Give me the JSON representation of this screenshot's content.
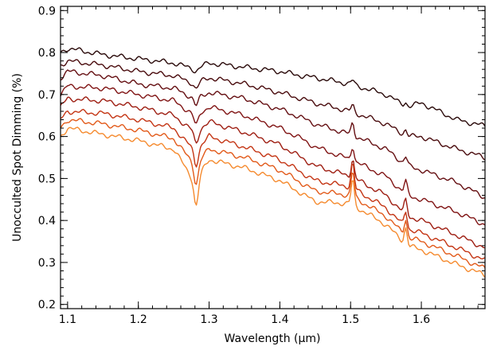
{
  "chart_data": {
    "type": "line",
    "title": "",
    "xlabel": "Wavelength (μm)",
    "ylabel": "Unocculted Spot Dimming (%)",
    "xlim": [
      1.09,
      1.69
    ],
    "ylim": [
      0.19,
      0.91
    ],
    "x_ticks": [
      "1.1",
      "1.2",
      "1.3",
      "1.4",
      "1.5",
      "1.6"
    ],
    "y_ticks": [
      "0.2",
      "0.3",
      "0.4",
      "0.5",
      "0.6",
      "0.7",
      "0.8",
      "0.9"
    ],
    "grid": false,
    "legend": "none",
    "x": [
      1.09,
      1.1,
      1.15,
      1.2,
      1.25,
      1.28,
      1.3,
      1.35,
      1.4,
      1.43,
      1.45,
      1.5,
      1.55,
      1.58,
      1.6,
      1.65,
      1.69
    ],
    "series": [
      {
        "color": "#2a0a0a",
        "values": [
          0.8,
          0.81,
          0.795,
          0.785,
          0.775,
          0.76,
          0.775,
          0.765,
          0.755,
          0.745,
          0.74,
          0.725,
          0.7,
          0.67,
          0.68,
          0.64,
          0.625
        ]
      },
      {
        "color": "#4a0c0e",
        "values": [
          0.77,
          0.78,
          0.77,
          0.755,
          0.745,
          0.725,
          0.74,
          0.725,
          0.705,
          0.69,
          0.68,
          0.66,
          0.63,
          0.6,
          0.6,
          0.57,
          0.55
        ]
      },
      {
        "color": "#650f12",
        "values": [
          0.74,
          0.755,
          0.745,
          0.725,
          0.715,
          0.69,
          0.705,
          0.69,
          0.665,
          0.645,
          0.63,
          0.605,
          0.57,
          0.53,
          0.52,
          0.49,
          0.455
        ]
      },
      {
        "color": "#801414",
        "values": [
          0.7,
          0.72,
          0.715,
          0.7,
          0.685,
          0.65,
          0.67,
          0.65,
          0.62,
          0.595,
          0.575,
          0.545,
          0.505,
          0.46,
          0.45,
          0.42,
          0.39
        ]
      },
      {
        "color": "#9e1e12",
        "values": [
          0.67,
          0.69,
          0.685,
          0.67,
          0.65,
          0.61,
          0.635,
          0.61,
          0.58,
          0.55,
          0.53,
          0.505,
          0.46,
          0.41,
          0.4,
          0.365,
          0.335
        ]
      },
      {
        "color": "#c43514",
        "values": [
          0.64,
          0.66,
          0.655,
          0.64,
          0.62,
          0.565,
          0.6,
          0.575,
          0.545,
          0.515,
          0.495,
          0.48,
          0.43,
          0.38,
          0.37,
          0.335,
          0.305
        ]
      },
      {
        "color": "#e25a1a",
        "values": [
          0.62,
          0.64,
          0.63,
          0.615,
          0.595,
          0.53,
          0.57,
          0.55,
          0.52,
          0.49,
          0.47,
          0.46,
          0.41,
          0.36,
          0.35,
          0.315,
          0.285
        ]
      },
      {
        "color": "#f58a2e",
        "values": [
          0.6,
          0.62,
          0.605,
          0.59,
          0.57,
          0.49,
          0.545,
          0.525,
          0.495,
          0.465,
          0.445,
          0.44,
          0.39,
          0.34,
          0.33,
          0.295,
          0.27
        ]
      }
    ],
    "features": {
      "dip_1": {
        "x": 1.282,
        "depth": [
          0.005,
          0.012,
          0.018,
          0.025,
          0.03,
          0.035,
          0.045,
          0.06
        ]
      },
      "spike_1": {
        "x": 1.503,
        "height": [
          0.01,
          0.015,
          0.03,
          0.035,
          0.045,
          0.06,
          0.06,
          0.06
        ]
      },
      "spike_2": {
        "x": 1.578,
        "height": [
          0.01,
          0.015,
          0.02,
          0.03,
          0.035,
          0.04,
          0.04,
          0.04
        ]
      }
    }
  }
}
